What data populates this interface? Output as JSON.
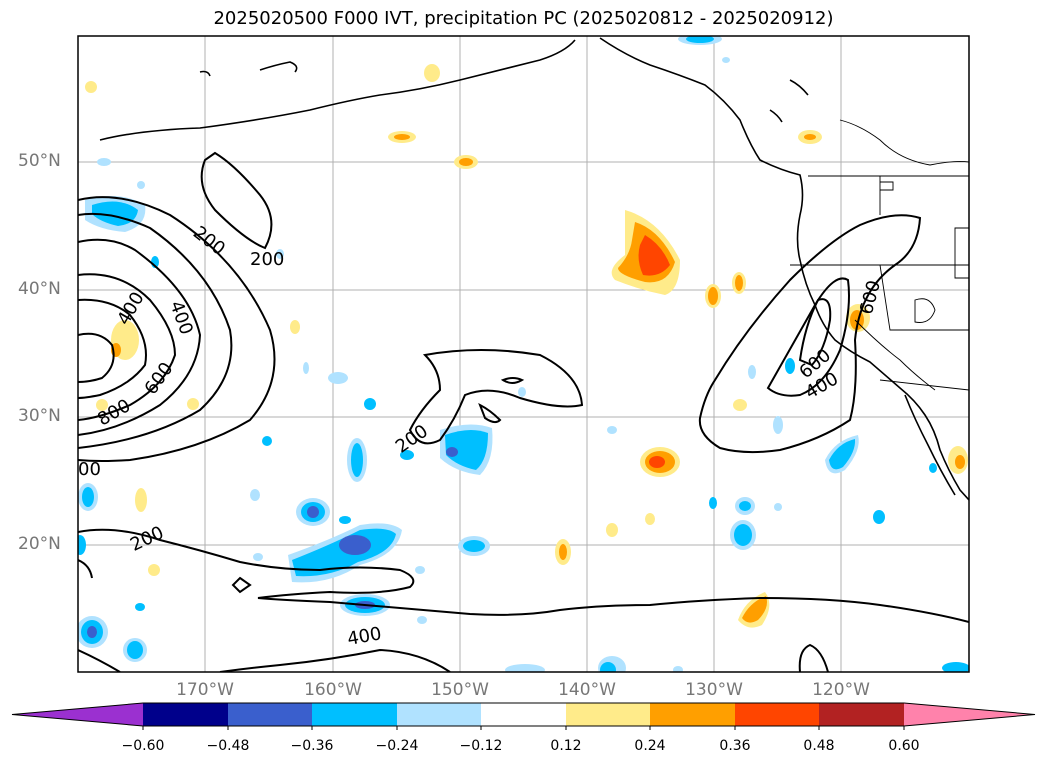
{
  "title": "2025020500 F000 IVT, precipitation PC (2025020812 - 2025020912)",
  "lat_labels": [
    "50°N",
    "40°N",
    "30°N",
    "20°N"
  ],
  "lon_labels": [
    "170°W",
    "160°W",
    "150°W",
    "140°W",
    "130°W",
    "120°W"
  ],
  "contour_labels": [
    "200",
    "200",
    "400",
    "400",
    "600",
    "800",
    "00",
    "200",
    "200",
    "400",
    "600",
    "600",
    "400"
  ],
  "colorbar": {
    "ticks": [
      "−0.60",
      "−0.48",
      "−0.36",
      "−0.24",
      "−0.12",
      "0.12",
      "0.24",
      "0.36",
      "0.48",
      "0.60"
    ],
    "colors": [
      "#9b30d0",
      "#00008b",
      "#3a5fcd",
      "#00bfff",
      "#b0e2ff",
      "#ffffff",
      "#ffeb8a",
      "#ff9f00",
      "#ff4500",
      "#b22222",
      "#ff82ab"
    ]
  }
}
